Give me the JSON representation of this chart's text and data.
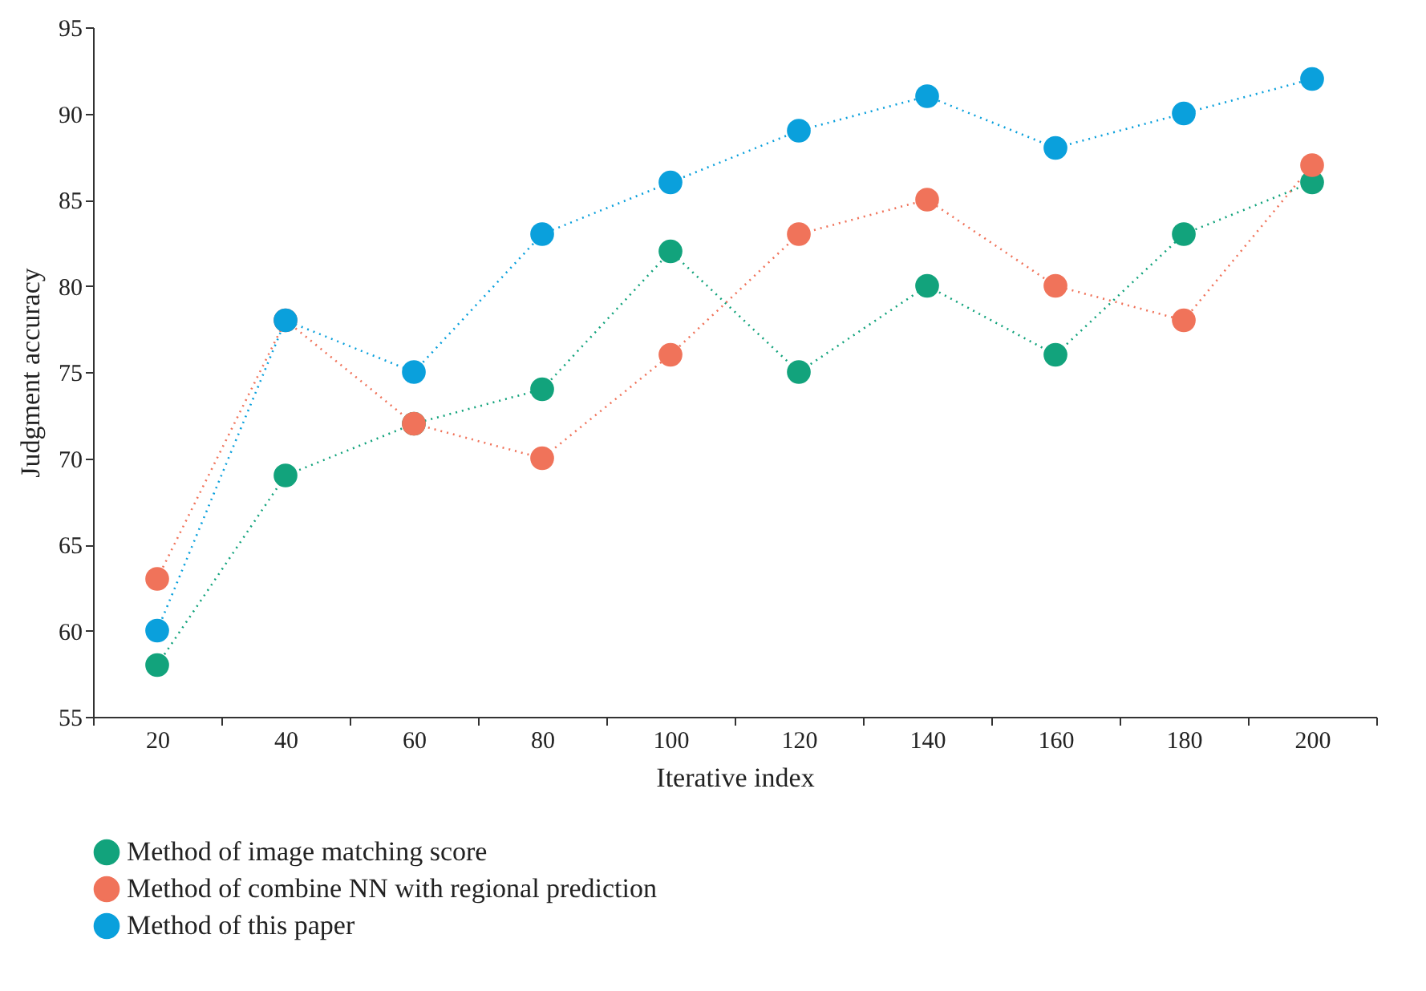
{
  "chart_data": {
    "type": "line",
    "xlabel": "Iterative index",
    "ylabel": "Judgment accuracy",
    "categories": [
      "20",
      "40",
      "60",
      "80",
      "100",
      "120",
      "140",
      "160",
      "180",
      "200"
    ],
    "series": [
      {
        "name": "Method of image matching score",
        "color": "#12a37c",
        "values": [
          58,
          69,
          72,
          74,
          82,
          75,
          80,
          76,
          83,
          86
        ]
      },
      {
        "name": "Method of combine NN with regional prediction",
        "color": "#f0735a",
        "values": [
          63,
          78,
          72,
          70,
          76,
          83,
          85,
          80,
          78,
          87
        ]
      },
      {
        "name": "Method of this paper",
        "color": "#0aa0dc",
        "values": [
          60,
          78,
          75,
          83,
          86,
          89,
          91,
          88,
          90,
          92
        ]
      }
    ],
    "ylim": [
      55,
      95
    ],
    "yticks": [
      55,
      60,
      65,
      70,
      75,
      80,
      85,
      90,
      95
    ],
    "grid": false,
    "legend": "bottom",
    "marker": "circle",
    "line_style": "dotted"
  }
}
